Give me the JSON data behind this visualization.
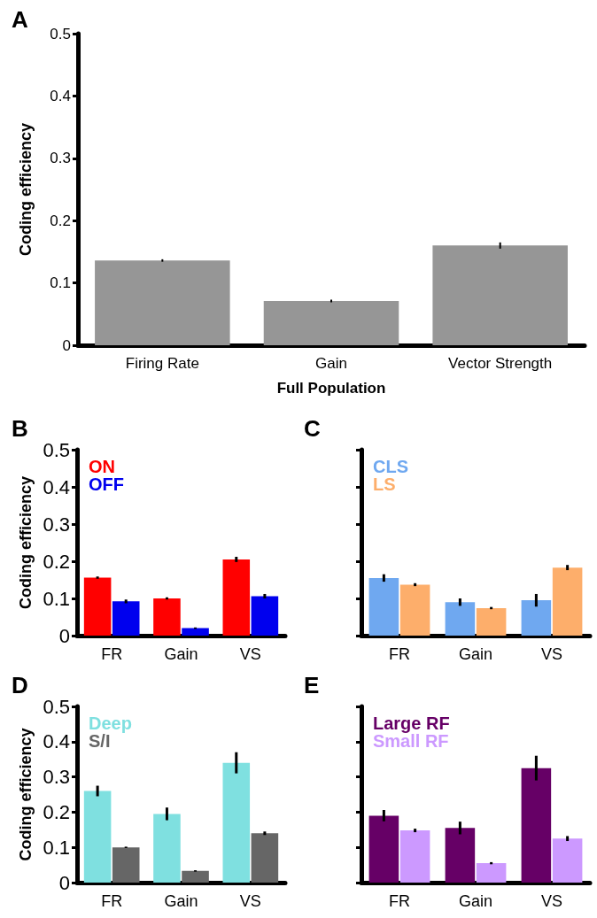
{
  "chart_data": [
    {
      "type": "bar",
      "title": "A",
      "xlabel": "Full Population",
      "ylabel": "Coding efficiency",
      "categories": [
        "Firing Rate",
        "Gain",
        "Vector Strength"
      ],
      "series": [
        {
          "color": "#969696",
          "values": [
            0.136,
            0.071,
            0.16
          ],
          "errors": [
            0.002,
            0.002,
            0.005
          ]
        }
      ],
      "ylim": [
        0,
        0.5
      ],
      "yticks": [
        0,
        0.1,
        0.2,
        0.3,
        0.4,
        0.5
      ],
      "grid": false,
      "legend": false
    },
    {
      "type": "bar",
      "title": "B",
      "ylabel": "Coding efficiency",
      "categories": [
        "FR",
        "Gain",
        "VS"
      ],
      "series": [
        {
          "name": "ON",
          "color": "#ff0000",
          "values": [
            0.156,
            0.1,
            0.205
          ],
          "errors": [
            0.003,
            0.003,
            0.007
          ]
        },
        {
          "name": "OFF",
          "color": "#0000ee",
          "values": [
            0.092,
            0.02,
            0.106
          ],
          "errors": [
            0.005,
            0.002,
            0.006
          ]
        }
      ],
      "ylim": [
        0,
        0.5
      ],
      "yticks": [
        0,
        0.1,
        0.2,
        0.3,
        0.4,
        0.5
      ],
      "grid": false,
      "legend": "top left"
    },
    {
      "type": "bar",
      "title": "C",
      "categories": [
        "FR",
        "Gain",
        "VS"
      ],
      "series": [
        {
          "name": "CLS",
          "color": "#6fa8f0",
          "values": [
            0.155,
            0.09,
            0.095
          ],
          "errors": [
            0.01,
            0.01,
            0.017
          ]
        },
        {
          "name": "LS",
          "color": "#fdae6b",
          "values": [
            0.137,
            0.074,
            0.183
          ],
          "errors": [
            0.004,
            0.003,
            0.007
          ]
        }
      ],
      "ylim": [
        0,
        0.5
      ],
      "yticks": [
        0,
        0.1,
        0.2,
        0.3,
        0.4,
        0.5
      ],
      "grid": false,
      "legend": "top left",
      "tick_labels": "x"
    },
    {
      "type": "bar",
      "title": "D",
      "ylabel": "Coding efficiency",
      "categories": [
        "FR",
        "Gain",
        "VS"
      ],
      "series": [
        {
          "name": "Deep",
          "color": "#7fe0e0",
          "values": [
            0.26,
            0.195,
            0.34
          ],
          "errors": [
            0.015,
            0.018,
            0.03
          ]
        },
        {
          "name": "S/I",
          "color": "#666666",
          "values": [
            0.1,
            0.033,
            0.14
          ],
          "errors": [
            0.002,
            0.002,
            0.005
          ]
        }
      ],
      "ylim": [
        0,
        0.5
      ],
      "yticks": [
        0,
        0.1,
        0.2,
        0.3,
        0.4,
        0.5
      ],
      "grid": false,
      "legend": "top left"
    },
    {
      "type": "bar",
      "title": "E",
      "categories": [
        "FR",
        "Gain",
        "VS"
      ],
      "series": [
        {
          "name": "Large RF",
          "color": "#660066",
          "values": [
            0.19,
            0.155,
            0.325
          ],
          "errors": [
            0.016,
            0.018,
            0.035
          ]
        },
        {
          "name": "Small RF",
          "color": "#cc99ff",
          "values": [
            0.148,
            0.055,
            0.125
          ],
          "errors": [
            0.005,
            0.003,
            0.007
          ]
        }
      ],
      "ylim": [
        0,
        0.5
      ],
      "yticks": [
        0,
        0.1,
        0.2,
        0.3,
        0.4,
        0.5
      ],
      "grid": false,
      "legend": "top left",
      "tick_labels": "x"
    }
  ]
}
